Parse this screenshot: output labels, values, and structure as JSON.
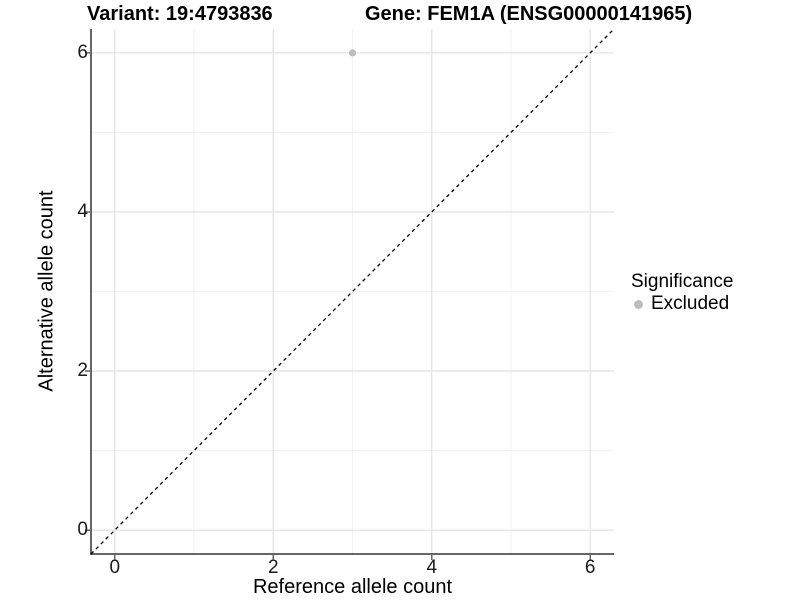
{
  "header": {
    "title_left": "Variant: 19:4793836",
    "title_right": "Gene: FEM1A (ENSG00000141965)"
  },
  "chart_data": {
    "type": "scatter",
    "title_left": "Variant: 19:4793836",
    "title_right": "Gene: FEM1A (ENSG00000141965)",
    "xlabel": "Reference allele count",
    "ylabel": "Alternative allele count",
    "xlim": [
      -0.3,
      6.3
    ],
    "ylim": [
      -0.3,
      6.3
    ],
    "xticks": [
      0,
      2,
      4,
      6
    ],
    "yticks": [
      0,
      2,
      4,
      6
    ],
    "minor_xticks": [
      1,
      3,
      5
    ],
    "minor_yticks": [
      1,
      3,
      5
    ],
    "grid": "major+minor",
    "legend_position": "right",
    "legend": {
      "title": "Significance",
      "items": [
        {
          "label": "Excluded",
          "color": "#bdbdbd"
        }
      ]
    },
    "series": [
      {
        "name": "Excluded",
        "color": "#bdbdbd",
        "marker": "circle",
        "points": [
          {
            "x": 3,
            "y": 6
          }
        ]
      }
    ],
    "reference_line": {
      "slope": 1,
      "intercept": 0,
      "style": "dashed",
      "color": "#000000"
    },
    "colors": {
      "background": "#ffffff",
      "grid_major": "#e4e4e4",
      "grid_minor": "#f1f1f1",
      "axis_line": "#333333",
      "tick_mark": "#666666",
      "tick_label": "#1a1a1a"
    }
  }
}
